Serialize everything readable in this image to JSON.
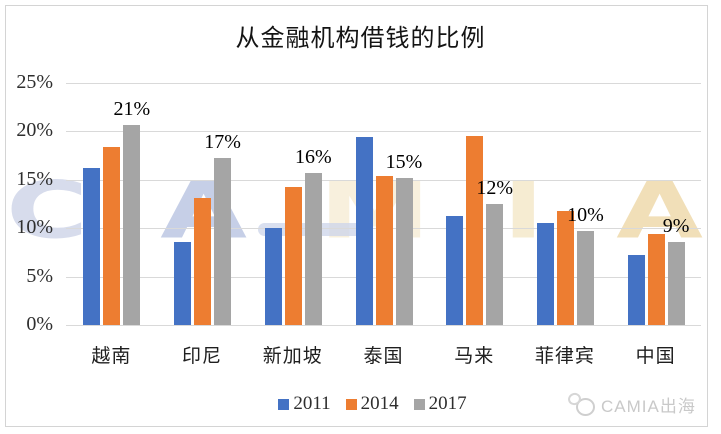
{
  "chart_data": {
    "type": "bar",
    "title": "从金融机构借钱的比例",
    "categories": [
      "越南",
      "印尼",
      "新加坡",
      "泰国",
      "马来",
      "菲律宾",
      "中国"
    ],
    "series": [
      {
        "name": "2011",
        "color": "#4472C4",
        "values": [
          16.2,
          8.6,
          10.0,
          19.4,
          11.2,
          10.5,
          7.2
        ]
      },
      {
        "name": "2014",
        "color": "#ED7D31",
        "values": [
          18.4,
          13.1,
          14.2,
          15.4,
          19.5,
          11.8,
          9.4
        ]
      },
      {
        "name": "2017",
        "color": "#A5A5A5",
        "values": [
          20.6,
          17.2,
          15.7,
          15.2,
          12.5,
          9.7,
          8.6
        ]
      }
    ],
    "data_labels": {
      "series": "2017",
      "values": [
        "21%",
        "17%",
        "16%",
        "15%",
        "12%",
        "10%",
        "9%"
      ]
    },
    "y_ticks": [
      "0%",
      "5%",
      "10%",
      "15%",
      "20%",
      "25%"
    ],
    "ylim": [
      0,
      25
    ],
    "grid": true,
    "legend_position": "bottom"
  },
  "watermark": {
    "letters": [
      "C",
      "A",
      "M",
      "I",
      "A"
    ],
    "letter_colors": [
      "#d7dcec",
      "#c6cfe7",
      "#f8f0dd",
      "#f6ecd2",
      "#f1dfb8"
    ],
    "badge_text": "CAMIA出海"
  },
  "colors": {
    "grid": "#d9d9d9",
    "frame": "#d4d4d4",
    "axis_text": "#2e2e2e",
    "data_label_text": "#000000",
    "badge_text": "#c9c9c9"
  }
}
